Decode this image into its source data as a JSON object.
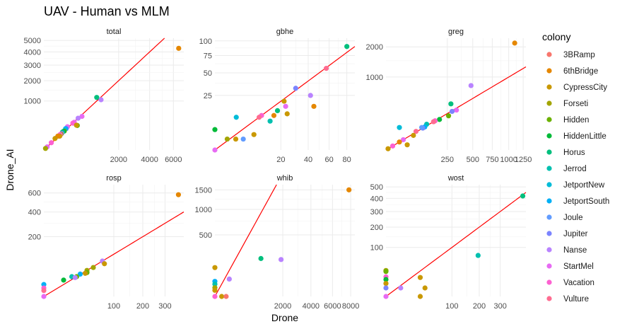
{
  "chart_data": {
    "type": "scatter",
    "title": "UAV - Human vs MLM",
    "xlabel": "Drone",
    "ylabel": "Drone_AI",
    "x_scale": "sqrt",
    "y_scale": "sqrt",
    "reference_line": "y = x",
    "reference_line_color": "#ff0000",
    "grid": true,
    "legend": {
      "title": "colony",
      "placement": "right",
      "entries": [
        {
          "name": "3BRamp",
          "color": "#F8766D"
        },
        {
          "name": "6thBridge",
          "color": "#E58700"
        },
        {
          "name": "CypressCity",
          "color": "#C99800"
        },
        {
          "name": "Forseti",
          "color": "#A3A500"
        },
        {
          "name": "Hidden",
          "color": "#6BB100"
        },
        {
          "name": "HiddenLittle",
          "color": "#00BA38"
        },
        {
          "name": "Horus",
          "color": "#00BF7D"
        },
        {
          "name": "Jerrod",
          "color": "#00C0AF"
        },
        {
          "name": "JetportNew",
          "color": "#00BCD8"
        },
        {
          "name": "JetportSouth",
          "color": "#00B0F6"
        },
        {
          "name": "Joule",
          "color": "#619CFF"
        },
        {
          "name": "Jupiter",
          "color": "#7B84FF"
        },
        {
          "name": "Nanse",
          "color": "#B983FF"
        },
        {
          "name": "StartMel",
          "color": "#E76BF3"
        },
        {
          "name": "Vacation",
          "color": "#FD61D1"
        },
        {
          "name": "Vulture",
          "color": "#FF6C91"
        }
      ]
    },
    "panels": [
      {
        "name": "total",
        "xlim": [
          0,
          7000
        ],
        "ylim": [
          0,
          5200
        ],
        "x_ticks": [
          "2000",
          "4000",
          "6000"
        ],
        "x_tick_values": [
          2000,
          4000,
          6000
        ],
        "y_ticks": [
          "1000",
          "2000",
          "3000",
          "4000",
          "5000"
        ],
        "y_tick_values": [
          1000,
          2000,
          3000,
          4000,
          5000
        ],
        "points": [
          {
            "colony": "6thBridge",
            "x": 6500,
            "y": 4300
          },
          {
            "colony": "Horus",
            "x": 1000,
            "y": 1150
          },
          {
            "colony": "Nanse",
            "x": 1170,
            "y": 1050
          },
          {
            "colony": "StartMel",
            "x": 520,
            "y": 470
          },
          {
            "colony": "Nanse",
            "x": 420,
            "y": 420
          },
          {
            "colony": "StartMel",
            "x": 330,
            "y": 320
          },
          {
            "colony": "Vacation",
            "x": 300,
            "y": 300
          },
          {
            "colony": "Hidden",
            "x": 400,
            "y": 250
          },
          {
            "colony": "CypressCity",
            "x": 380,
            "y": 255
          },
          {
            "colony": "StartMel",
            "x": 200,
            "y": 225
          },
          {
            "colony": "Jupiter",
            "x": 180,
            "y": 190
          },
          {
            "colony": "JetportSouth",
            "x": 170,
            "y": 190
          },
          {
            "colony": "Hidden",
            "x": 150,
            "y": 150
          },
          {
            "colony": "HiddenLittle",
            "x": 140,
            "y": 145
          },
          {
            "colony": "Horus",
            "x": 125,
            "y": 135
          },
          {
            "colony": "Jupiter",
            "x": 115,
            "y": 115
          },
          {
            "colony": "Forseti",
            "x": 105,
            "y": 105
          },
          {
            "colony": "Vacation",
            "x": 95,
            "y": 100
          },
          {
            "colony": "CypressCity",
            "x": 90,
            "y": 80
          },
          {
            "colony": "6thBridge",
            "x": 70,
            "y": 80
          },
          {
            "colony": "CypressCity",
            "x": 45,
            "y": 55
          },
          {
            "colony": "Vacation",
            "x": 20,
            "y": 22
          },
          {
            "colony": "StartMel",
            "x": 4,
            "y": 4
          },
          {
            "colony": "Forseti",
            "x": 1,
            "y": 1
          }
        ]
      },
      {
        "name": "gbhe",
        "xlim": [
          0,
          90
        ],
        "ylim": [
          0,
          105
        ],
        "x_ticks": [
          "20",
          "40",
          "60",
          "80"
        ],
        "x_tick_values": [
          20,
          40,
          60,
          80
        ],
        "y_ticks": [
          "25",
          "50",
          "75",
          "100"
        ],
        "y_tick_values": [
          25,
          50,
          75,
          100
        ],
        "points": [
          {
            "colony": "Horus",
            "x": 80,
            "y": 90
          },
          {
            "colony": "Vulture",
            "x": 57,
            "y": 56
          },
          {
            "colony": "Jupiter",
            "x": 30,
            "y": 32
          },
          {
            "colony": "Nanse",
            "x": 42,
            "y": 25
          },
          {
            "colony": "CypressCity",
            "x": 22,
            "y": 20
          },
          {
            "colony": "6thBridge",
            "x": 45,
            "y": 16
          },
          {
            "colony": "StartMel",
            "x": 23,
            "y": 16
          },
          {
            "colony": "Vacation",
            "x": 10,
            "y": 10
          },
          {
            "colony": "Vulture",
            "x": 9,
            "y": 9
          },
          {
            "colony": "Horus",
            "x": 18,
            "y": 13
          },
          {
            "colony": "CypressCity",
            "x": 24,
            "y": 11
          },
          {
            "colony": "6thBridge",
            "x": 16,
            "y": 10
          },
          {
            "colony": "Jerrod",
            "x": 14,
            "y": 7
          },
          {
            "colony": "JetportNew",
            "x": 2.1,
            "y": 9
          },
          {
            "colony": "CypressCity",
            "x": 7,
            "y": 2
          },
          {
            "colony": "HiddenLittle",
            "x": 0,
            "y": 3.5
          },
          {
            "colony": "Forseti",
            "x": 0.7,
            "y": 1
          },
          {
            "colony": "CypressCity",
            "x": 2,
            "y": 1
          },
          {
            "colony": "Joule",
            "x": 3.7,
            "y": 1
          },
          {
            "colony": "StartMel",
            "x": 0,
            "y": 0
          }
        ]
      },
      {
        "name": "greg",
        "xlim": [
          0,
          1300
        ],
        "ylim": [
          0,
          2350
        ],
        "x_ticks": [
          "250",
          "500",
          "750",
          "1000",
          "1250"
        ],
        "x_tick_values": [
          250,
          500,
          750,
          1000,
          1250
        ],
        "y_ticks": [
          "1000",
          "2000"
        ],
        "y_tick_values": [
          1000,
          2000
        ],
        "points": [
          {
            "colony": "6thBridge",
            "x": 1100,
            "y": 2150
          },
          {
            "colony": "Nanse",
            "x": 480,
            "y": 780
          },
          {
            "colony": "Horus",
            "x": 280,
            "y": 400
          },
          {
            "colony": "StartMel",
            "x": 330,
            "y": 300
          },
          {
            "colony": "Jupiter",
            "x": 290,
            "y": 280
          },
          {
            "colony": "Hidden",
            "x": 260,
            "y": 220
          },
          {
            "colony": "HiddenLittle",
            "x": 190,
            "y": 175
          },
          {
            "colony": "Vacation",
            "x": 160,
            "y": 160
          },
          {
            "colony": "Vulture",
            "x": 150,
            "y": 150
          },
          {
            "colony": "Jerrod",
            "x": 110,
            "y": 125
          },
          {
            "colony": "JetportSouth",
            "x": 100,
            "y": 100
          },
          {
            "colony": "Jupiter",
            "x": 90,
            "y": 90
          },
          {
            "colony": "Joule",
            "x": 85,
            "y": 95
          },
          {
            "colony": "Vulture",
            "x": 60,
            "y": 65
          },
          {
            "colony": "CypressCity",
            "x": 50,
            "y": 40
          },
          {
            "colony": "JetportNew",
            "x": 12,
            "y": 95
          },
          {
            "colony": "StartMel",
            "x": 20,
            "y": 20
          },
          {
            "colony": "6thBridge",
            "x": 12,
            "y": 12
          },
          {
            "colony": "CypressCity",
            "x": 30,
            "y": 5
          },
          {
            "colony": "Vacation",
            "x": 3,
            "y": 3
          },
          {
            "colony": "CypressCity",
            "x": 0.3,
            "y": 0.3
          }
        ]
      },
      {
        "name": "rosp",
        "xlim": [
          0,
          400
        ],
        "ylim": [
          0,
          700
        ],
        "x_ticks": [
          "100",
          "200",
          "300"
        ],
        "x_tick_values": [
          100,
          200,
          300
        ],
        "y_ticks": [
          "200",
          "400",
          "600"
        ],
        "y_tick_values": [
          200,
          400,
          600
        ],
        "points": [
          {
            "colony": "6thBridge",
            "x": 370,
            "y": 580
          },
          {
            "colony": "Nanse",
            "x": 70,
            "y": 70
          },
          {
            "colony": "CypressCity",
            "x": 75,
            "y": 60
          },
          {
            "colony": "Forseti",
            "x": 50,
            "y": 47
          },
          {
            "colony": "Forseti",
            "x": 38,
            "y": 38
          },
          {
            "colony": "Hidden",
            "x": 38,
            "y": 32
          },
          {
            "colony": "CypressCity",
            "x": 35,
            "y": 30
          },
          {
            "colony": "JetportSouth",
            "x": 27,
            "y": 28
          },
          {
            "colony": "Hidden",
            "x": 22,
            "y": 22
          },
          {
            "colony": "Jerrod",
            "x": 16,
            "y": 22
          },
          {
            "colony": "Nanse",
            "x": 20,
            "y": 20
          },
          {
            "colony": "HiddenLittle",
            "x": 8,
            "y": 15
          },
          {
            "colony": "JetportSouth",
            "x": 0,
            "y": 8
          },
          {
            "colony": "Vacation",
            "x": 0,
            "y": 4
          },
          {
            "colony": "Vulture",
            "x": 0,
            "y": 2
          },
          {
            "colony": "StartMel",
            "x": 0,
            "y": 0
          }
        ]
      },
      {
        "name": "whib",
        "xlim": [
          0,
          8500
        ],
        "ylim": [
          0,
          1650
        ],
        "x_ticks": [
          "2000",
          "4000",
          "6000",
          "8000"
        ],
        "x_tick_values": [
          2000,
          4000,
          6000,
          8000
        ],
        "y_ticks": [
          "500",
          "1000",
          "1500"
        ],
        "y_tick_values": [
          500,
          1000,
          1500
        ],
        "points": [
          {
            "colony": "6thBridge",
            "x": 7800,
            "y": 1500
          },
          {
            "colony": "Nanse",
            "x": 1900,
            "y": 180
          },
          {
            "colony": "Horus",
            "x": 920,
            "y": 190
          },
          {
            "colony": "Nanse",
            "x": 90,
            "y": 40
          },
          {
            "colony": "CypressCity",
            "x": 0,
            "y": 110
          },
          {
            "colony": "JetportSouth",
            "x": 0,
            "y": 30
          },
          {
            "colony": "Jerrod",
            "x": 0,
            "y": 20
          },
          {
            "colony": "Forseti",
            "x": 0,
            "y": 10
          },
          {
            "colony": "CypressCity",
            "x": 0,
            "y": 5
          },
          {
            "colony": "Vacation",
            "x": 0,
            "y": 0
          },
          {
            "colony": "CypressCity",
            "x": 20,
            "y": 0
          },
          {
            "colony": "3BRamp",
            "x": 55,
            "y": 0
          }
        ]
      },
      {
        "name": "wost",
        "xlim": [
          0,
          450
        ],
        "ylim": [
          0,
          520
        ],
        "x_ticks": [
          "100",
          "200",
          "300"
        ],
        "x_tick_values": [
          100,
          200,
          300
        ],
        "y_ticks": [
          "100",
          "200",
          "300",
          "400",
          "500"
        ],
        "y_tick_values": [
          100,
          200,
          300,
          400,
          500
        ],
        "points": [
          {
            "colony": "Horus",
            "x": 430,
            "y": 420
          },
          {
            "colony": "Jerrod",
            "x": 195,
            "y": 70
          },
          {
            "colony": "CypressCity",
            "x": 27,
            "y": 15
          },
          {
            "colony": "CypressCity",
            "x": 35,
            "y": 3
          },
          {
            "colony": "Nanse",
            "x": 5,
            "y": 3
          },
          {
            "colony": "CypressCity",
            "x": 27,
            "y": 0
          },
          {
            "colony": "Forseti",
            "x": 0,
            "y": 28
          },
          {
            "colony": "Hidden",
            "x": 0,
            "y": 26
          },
          {
            "colony": "Vacation",
            "x": 0,
            "y": 16
          },
          {
            "colony": "HiddenLittle",
            "x": 0,
            "y": 12
          },
          {
            "colony": "CypressCity",
            "x": 0,
            "y": 7
          },
          {
            "colony": "Jupiter",
            "x": 0,
            "y": 3
          },
          {
            "colony": "StartMel",
            "x": 0,
            "y": 0
          }
        ]
      }
    ]
  }
}
